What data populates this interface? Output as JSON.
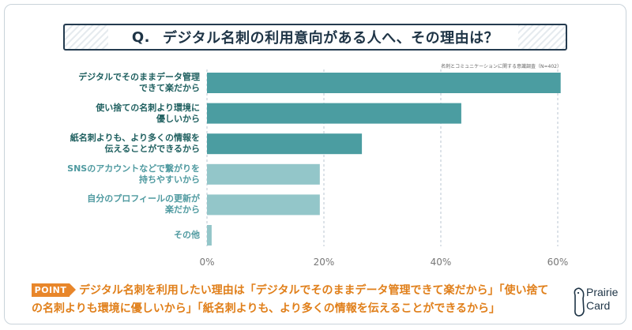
{
  "title": {
    "q": "Q.",
    "text": "デジタル名刺の利用意向がある人へ、その理由は？"
  },
  "source": "名刺とコミュニケーションに関する意識調査（N=402）",
  "chart_data": {
    "type": "bar",
    "orientation": "horizontal",
    "categories": [
      "デジタルでそのままデータ管理\nできて楽だから",
      "使い捨ての名刺より環境に\n優しいから",
      "紙名刺よりも、より多くの情報を\n伝えることができるから",
      "SNSのアカウントなどで繋がりを\n持ちやすいから",
      "自分のプロフィールの更新が\n楽だから",
      "その他"
    ],
    "values": [
      60.5,
      43.5,
      26.5,
      19.3,
      19.3,
      0.8
    ],
    "highlight": [
      true,
      true,
      true,
      false,
      false,
      false
    ],
    "xlim": [
      0,
      60
    ],
    "ticks": [
      "0%",
      "20%",
      "40%",
      "60%"
    ],
    "tick_values": [
      0,
      20,
      40,
      60
    ],
    "colors": {
      "highlight": "#4b9da1",
      "normal": "#93c6c9",
      "grid": "#b8c6d0"
    }
  },
  "point": {
    "tag": "POINT",
    "line1": "デジタル名刺を利用したい理由は「デジタルでそのままデータ管理できて楽だから」「使い捨て",
    "line2": "の名刺よりも環境に優しいから」「紙名刺よりも、より多くの情報を伝えることができるから」"
  },
  "logo": {
    "line1": "Prairie",
    "line2": "Card"
  }
}
